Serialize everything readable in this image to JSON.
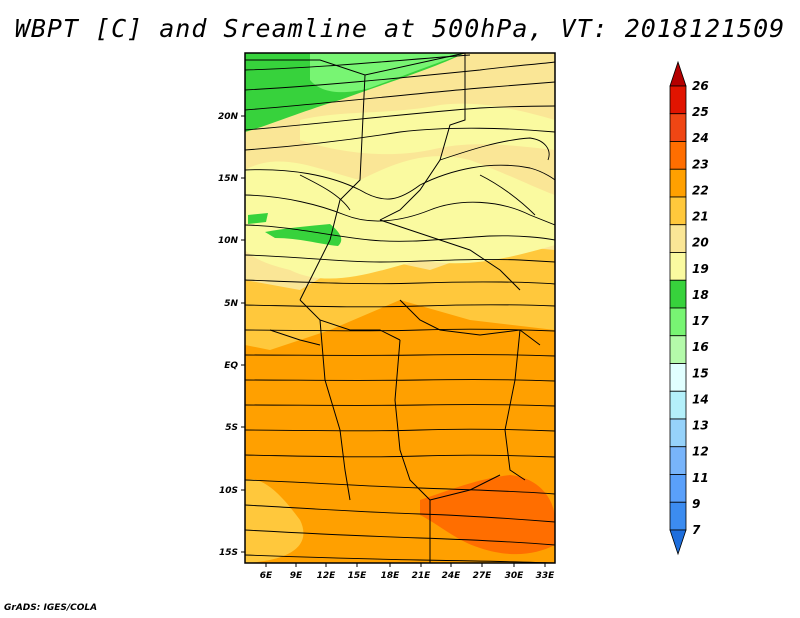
{
  "title": "WBPT [C] and Sreamline at 500hPa, VT: 2018121509",
  "credit": "GrADS: IGES/COLA",
  "map": {
    "lat_labels": [
      "20N",
      "15N",
      "10N",
      "5N",
      "EQ",
      "5S",
      "10S",
      "15S"
    ],
    "lon_labels": [
      "6E",
      "9E",
      "12E",
      "15E",
      "18E",
      "21E",
      "24E",
      "27E",
      "30E",
      "33E"
    ],
    "lon_range": [
      4,
      33
    ],
    "lat_range": [
      -16,
      25
    ]
  },
  "colorbar": {
    "labels": [
      "7",
      "9",
      "11",
      "12",
      "13",
      "14",
      "15",
      "16",
      "17",
      "18",
      "19",
      "20",
      "21",
      "22",
      "23",
      "24",
      "25",
      "26"
    ],
    "colors": [
      "#1e6edc",
      "#3c8cf0",
      "#5aa0fa",
      "#78b4fa",
      "#96d2fa",
      "#b4f0fa",
      "#e1ffff",
      "#b4faaa",
      "#78f573",
      "#37d23c",
      "#fafaa0",
      "#fae696",
      "#ffc83c",
      "#ffa000",
      "#ff6e00",
      "#f04614",
      "#e11400",
      "#b40000"
    ]
  },
  "colors": {
    "green_dark": "#37d23c",
    "green_mid": "#78f573",
    "yellow_light": "#fafaa0",
    "yellow": "#fae696",
    "orange_light": "#ffc83c",
    "orange": "#ffa000",
    "orange_dark": "#ff6e00"
  }
}
